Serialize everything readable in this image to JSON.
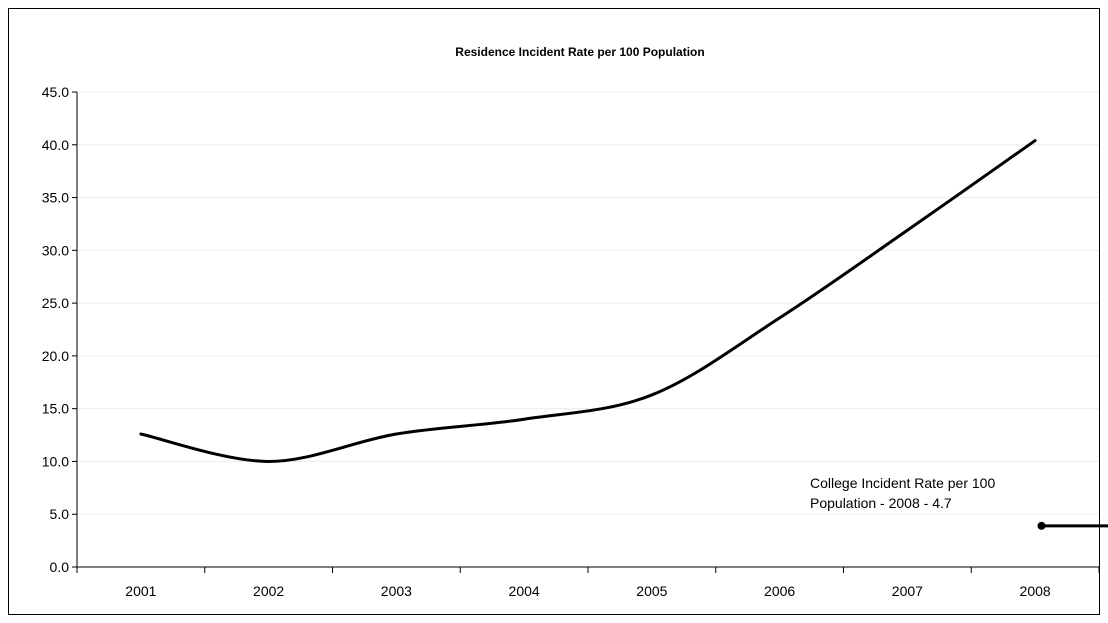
{
  "chart_data": {
    "type": "line",
    "title": "Residence Incident Rate per 100 Population",
    "xlabel": "",
    "ylabel": "",
    "categories": [
      "2001",
      "2002",
      "2003",
      "2004",
      "2005",
      "2006",
      "2007",
      "2008"
    ],
    "ylim": [
      0,
      45
    ],
    "yticks": [
      "0.0",
      "5.0",
      "10.0",
      "15.0",
      "20.0",
      "25.0",
      "30.0",
      "35.0",
      "40.0",
      "45.0"
    ],
    "grid": true,
    "legend": "none",
    "series": [
      {
        "values": [
          12.6,
          10.0,
          12.6,
          14.0,
          16.3,
          23.6,
          31.9,
          40.4
        ],
        "color": "#000000",
        "smooth": true
      }
    ],
    "reference_line": {
      "value": 3.9,
      "x_start": 7.55,
      "x_end": 8.5,
      "color": "#000000"
    },
    "annotation": {
      "lines": [
        "College Incident Rate per 100",
        "Population - 2008 - 4.7"
      ]
    }
  }
}
